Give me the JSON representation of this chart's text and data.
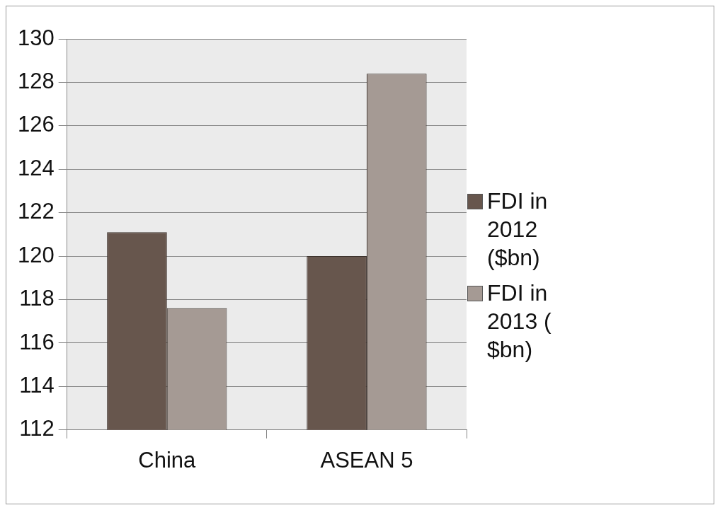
{
  "chart_data": {
    "type": "bar",
    "categories": [
      "China",
      "ASEAN 5"
    ],
    "series": [
      {
        "name": "FDI in 2012 ($bn)",
        "color": "#67564d",
        "values": [
          121.1,
          120.0
        ]
      },
      {
        "name": "FDI in 2013 ( $bn)",
        "color": "#a59a94",
        "values": [
          117.6,
          128.4
        ]
      }
    ],
    "ylim": [
      112,
      130
    ],
    "yticks": [
      112,
      114,
      116,
      118,
      120,
      122,
      124,
      126,
      128,
      130
    ],
    "grid": "y",
    "legend": "right"
  }
}
